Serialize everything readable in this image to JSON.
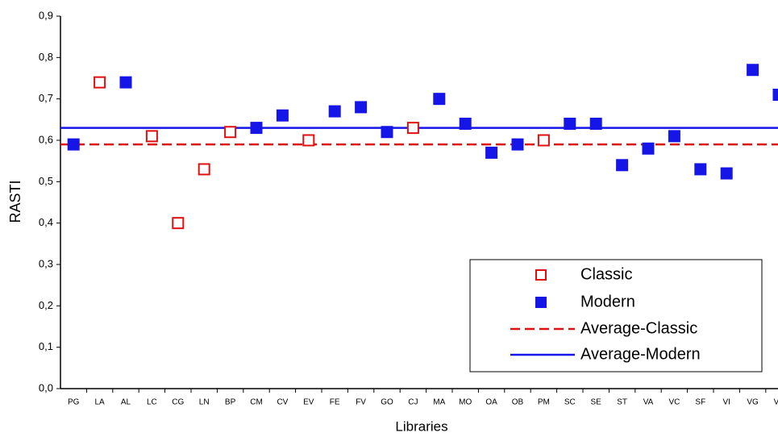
{
  "chart_data": {
    "type": "scatter",
    "x_label": "Libraries",
    "y_label": "RASTI",
    "categories": [
      "PG",
      "LA",
      "AL",
      "LC",
      "CG",
      "LN",
      "BP",
      "CM",
      "CV",
      "EV",
      "FE",
      "FV",
      "GO",
      "CJ",
      "MA",
      "MO",
      "OA",
      "OB",
      "PM",
      "SC",
      "SE",
      "ST",
      "VA",
      "VC",
      "SF",
      "VI",
      "VG",
      "VF"
    ],
    "series": [
      {
        "name": "Classic",
        "color": "#e01010",
        "marker": "hollow-square",
        "values": [
          null,
          0.74,
          null,
          0.61,
          0.4,
          0.53,
          0.62,
          null,
          null,
          0.6,
          null,
          null,
          null,
          0.63,
          null,
          null,
          null,
          null,
          0.6,
          null,
          null,
          null,
          null,
          null,
          null,
          null,
          null,
          null
        ]
      },
      {
        "name": "Modern",
        "color": "#1515e8",
        "marker": "filled-square",
        "values": [
          0.59,
          null,
          0.74,
          null,
          null,
          null,
          null,
          0.63,
          0.66,
          null,
          0.67,
          0.68,
          0.62,
          null,
          0.7,
          0.64,
          0.57,
          0.59,
          null,
          0.64,
          0.64,
          0.54,
          0.58,
          0.61,
          0.53,
          0.52,
          0.77,
          0.71
        ]
      }
    ],
    "averages": [
      {
        "name": "Average-Classic",
        "color": "#e01010",
        "style": "dashed",
        "value": 0.59
      },
      {
        "name": "Average-Modern",
        "color": "#1515e8",
        "style": "solid",
        "value": 0.63
      }
    ],
    "ylim": [
      0,
      0.9
    ],
    "yticks": [
      {
        "value": 0,
        "label": "0,0"
      },
      {
        "value": 0.1,
        "label": "0,1"
      },
      {
        "value": 0.2,
        "label": "0,2"
      },
      {
        "value": 0.3,
        "label": "0,3"
      },
      {
        "value": 0.4,
        "label": "0,4"
      },
      {
        "value": 0.5,
        "label": "0,5"
      },
      {
        "value": 0.6,
        "label": "0,6"
      },
      {
        "value": 0.7,
        "label": "0,7"
      },
      {
        "value": 0.8,
        "label": "0,8"
      },
      {
        "value": 0.9,
        "label": "0,9"
      }
    ]
  }
}
